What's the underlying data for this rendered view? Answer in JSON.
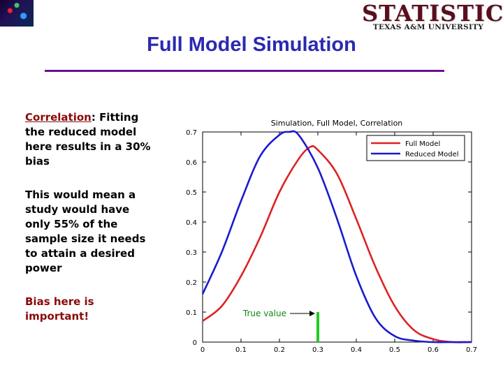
{
  "header": {
    "logo_main": "STATISTICS",
    "logo_sub": "TEXAS A&M UNIVERSITY",
    "title": "Full Model Simulation"
  },
  "left_text": {
    "p1_term": "Correlation",
    "p1_rest": ": Fitting the reduced model here results in a 30% bias",
    "p2": "This would mean a study would have only 55% of the sample size it needs to attain a desired power",
    "p3": "Bias here is important!"
  },
  "colors": {
    "full_model": "#dd2222",
    "reduced_model": "#1a1ad0",
    "true_value": "#22cc22",
    "annotation": "#118811",
    "title": "#2a2ab0",
    "rule": "#6a0f9a"
  },
  "chart_data": {
    "type": "line",
    "title": "Simulation, Full Model, Correlation",
    "xlim": [
      0,
      0.7
    ],
    "ylim": [
      0,
      0.7
    ],
    "xticks": [
      "0",
      "0.1",
      "0.2",
      "0.3",
      "0.4",
      "0.5",
      "0.6",
      "0.7"
    ],
    "yticks": [
      "0",
      "0.1",
      "0.2",
      "0.3",
      "0.4",
      "0.5",
      "0.6",
      "0.7"
    ],
    "legend_position": "top-right",
    "series": [
      {
        "name": "Full Model",
        "x": [
          0,
          0.05,
          0.1,
          0.15,
          0.2,
          0.25,
          0.28,
          0.3,
          0.35,
          0.4,
          0.45,
          0.5,
          0.55,
          0.6,
          0.65,
          0.7
        ],
        "y": [
          0.07,
          0.12,
          0.22,
          0.35,
          0.5,
          0.61,
          0.65,
          0.64,
          0.56,
          0.41,
          0.25,
          0.12,
          0.04,
          0.01,
          0.0,
          0.0
        ]
      },
      {
        "name": "Reduced Model",
        "x": [
          0,
          0.05,
          0.1,
          0.15,
          0.2,
          0.225,
          0.25,
          0.3,
          0.35,
          0.4,
          0.45,
          0.5,
          0.55,
          0.6,
          0.65,
          0.7
        ],
        "y": [
          0.16,
          0.3,
          0.47,
          0.62,
          0.69,
          0.7,
          0.69,
          0.58,
          0.41,
          0.22,
          0.08,
          0.02,
          0.005,
          0.0,
          0.0,
          0.0
        ]
      }
    ],
    "annotation": {
      "text": "True value",
      "x": 0.3,
      "bar_height": 0.1
    }
  }
}
